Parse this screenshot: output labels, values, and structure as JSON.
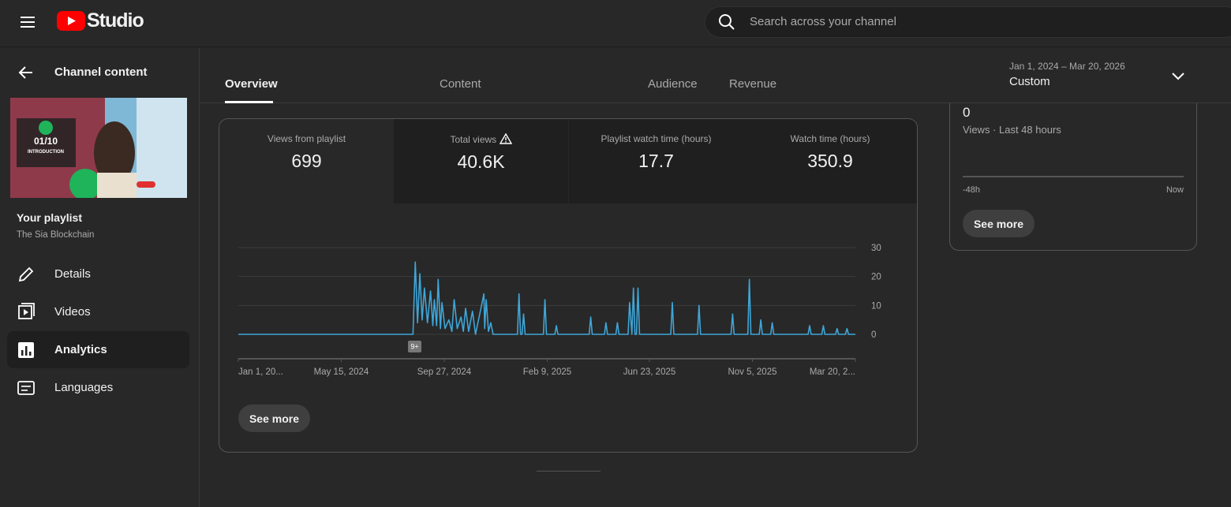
{
  "header": {
    "logo": "Studio",
    "search_placeholder": "Search across your channel"
  },
  "sidebar": {
    "back": "Channel content",
    "thumbnail": {
      "episode": "01/10",
      "caption": "INTRODUCTION"
    },
    "playlist_label": "Your playlist",
    "playlist_name": "The Sia Blockchain",
    "nav": [
      "Details",
      "Videos",
      "Analytics",
      "Languages"
    ]
  },
  "tabs": [
    "Overview",
    "Content",
    "Audience",
    "Revenue"
  ],
  "date_range": {
    "range": "Jan 1, 2024 – Mar 20, 2026",
    "preset": "Custom"
  },
  "metrics": [
    {
      "label": "Views from playlist",
      "value": "699"
    },
    {
      "label": "Total views",
      "value": "40.6K"
    },
    {
      "label": "Playlist watch time (hours)",
      "value": "17.7"
    },
    {
      "label": "Watch time (hours)",
      "value": "350.9"
    }
  ],
  "chart_data": {
    "type": "line",
    "color": "#3ea6d8",
    "annotation": "9+",
    "x": [
      "2024-01-01",
      "2024-08-17",
      "2024-08-20",
      "2024-08-23",
      "2024-08-26",
      "2024-08-29",
      "2024-09-01",
      "2024-09-05",
      "2024-09-09",
      "2024-09-12",
      "2024-09-14",
      "2024-09-17",
      "2024-09-19",
      "2024-09-22",
      "2024-09-24",
      "2024-09-28",
      "2024-10-03",
      "2024-10-07",
      "2024-10-10",
      "2024-10-14",
      "2024-10-19",
      "2024-10-22",
      "2024-10-25",
      "2024-10-29",
      "2024-11-03",
      "2024-11-07",
      "2024-11-18",
      "2024-11-19",
      "2024-11-21",
      "2024-11-24",
      "2024-11-27",
      "2024-11-30",
      "2025-01-01",
      "2025-01-03",
      "2025-01-05",
      "2025-01-07",
      "2025-01-09",
      "2025-01-11",
      "2025-02-04",
      "2025-02-06",
      "2025-02-08",
      "2025-02-19",
      "2025-02-21",
      "2025-02-23",
      "2025-04-05",
      "2025-04-07",
      "2025-04-09",
      "2025-04-25",
      "2025-04-27",
      "2025-04-29",
      "2025-05-10",
      "2025-05-12",
      "2025-05-14",
      "2025-05-26",
      "2025-05-28",
      "2025-05-31",
      "2025-06-02",
      "2025-06-04",
      "2025-06-06",
      "2025-06-08",
      "2025-06-10",
      "2025-07-21",
      "2025-07-23",
      "2025-07-25",
      "2025-08-25",
      "2025-08-27",
      "2025-08-29",
      "2025-10-08",
      "2025-10-10",
      "2025-10-12",
      "2025-10-30",
      "2025-11-01",
      "2025-11-03",
      "2025-11-14",
      "2025-11-16",
      "2025-11-18",
      "2025-11-29",
      "2025-12-01",
      "2025-12-03",
      "2026-01-17",
      "2026-01-19",
      "2026-01-21",
      "2026-02-04",
      "2026-02-06",
      "2026-02-08",
      "2026-02-22",
      "2026-02-24",
      "2026-02-26",
      "2026-03-07",
      "2026-03-09",
      "2026-03-11",
      "2026-03-20"
    ],
    "values": [
      0,
      0,
      25,
      4,
      21,
      5,
      16,
      4,
      15,
      3,
      12,
      3,
      19,
      2,
      11,
      2,
      5,
      1,
      12,
      2,
      6,
      1,
      9,
      1,
      8,
      0,
      14,
      2,
      12,
      1,
      4,
      0,
      0,
      14,
      0,
      0,
      7,
      0,
      0,
      12,
      0,
      0,
      3,
      0,
      0,
      6,
      0,
      0,
      4,
      0,
      0,
      4,
      0,
      0,
      11,
      0,
      16,
      0,
      0,
      16,
      0,
      0,
      11,
      0,
      0,
      10,
      0,
      0,
      7,
      0,
      0,
      19,
      0,
      0,
      5,
      0,
      0,
      4,
      0,
      0,
      3,
      0,
      0,
      3,
      0,
      0,
      2,
      0,
      0,
      2,
      0,
      0
    ],
    "xlim": [
      "2024-01-01",
      "2026-03-20"
    ],
    "xticks": [
      {
        "value": "2024-01-01",
        "label": "Jan 1, 20..."
      },
      {
        "value": "2024-05-15",
        "label": "May 15, 2024"
      },
      {
        "value": "2024-09-27",
        "label": "Sep 27, 2024"
      },
      {
        "value": "2025-02-09",
        "label": "Feb 9, 2025"
      },
      {
        "value": "2025-06-23",
        "label": "Jun 23, 2025"
      },
      {
        "value": "2025-11-05",
        "label": "Nov 5, 2025"
      },
      {
        "value": "2026-03-20",
        "label": "Mar 20, 2..."
      }
    ],
    "ylim": [
      0,
      30
    ],
    "yticks": [
      0,
      10,
      20,
      30
    ],
    "grid": true,
    "button": "See more"
  },
  "realtime": {
    "value": "0",
    "label": "Views · Last 48 hours",
    "start": "-48h",
    "end": "Now",
    "button": "See more"
  }
}
